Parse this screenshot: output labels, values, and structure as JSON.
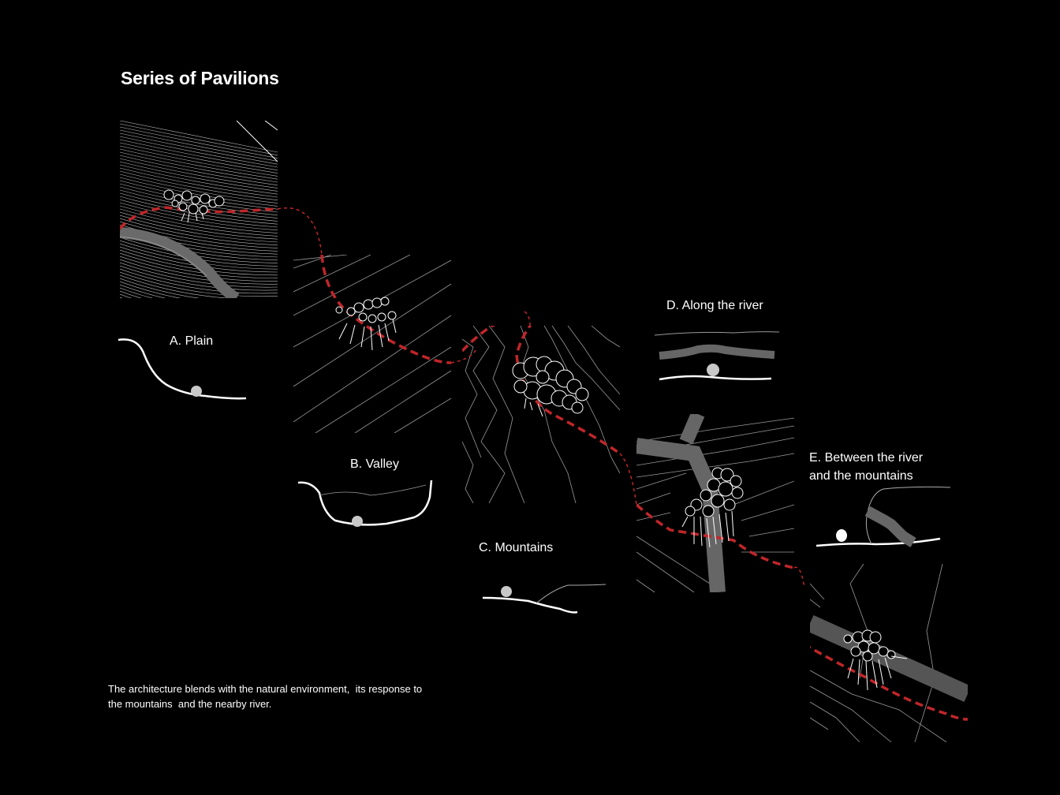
{
  "title": "Series of Pavilions",
  "sites": [
    {
      "id": "A",
      "label": "A. Plain"
    },
    {
      "id": "B",
      "label": "B. Valley"
    },
    {
      "id": "C",
      "label": "C. Mountains"
    },
    {
      "id": "D",
      "label": "D. Along the river"
    },
    {
      "id": "E",
      "label_line1": "E. Between the river",
      "label_line2": "and the mountains"
    }
  ],
  "caption_line1": "The architecture blends with the natural environment,  its response to",
  "caption_line2": "the mountains  and the nearby river.",
  "colors": {
    "background": "#000000",
    "path": "#c0262a",
    "line": "#ffffff",
    "contour": "#9a9a9a",
    "river": "#555555"
  }
}
